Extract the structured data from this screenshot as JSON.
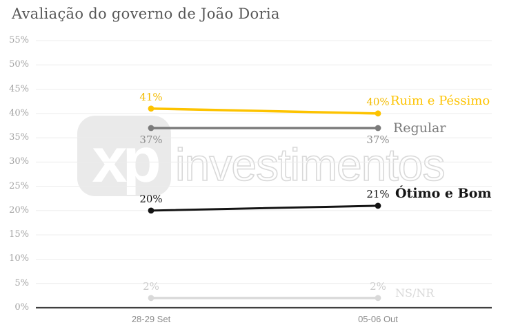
{
  "title": "Avaliação do governo de João Doria",
  "watermark": {
    "logo_text": "xp",
    "brand_text": "investimentos"
  },
  "colors": {
    "background": "#ffffff",
    "title_text": "#575757",
    "grid_line": "#ececec",
    "axis_line": "#3f3f3f",
    "y_tick_text": "#a4a4a4",
    "x_tick_text": "#8c8c8c",
    "watermark_block": "#eaeaea",
    "watermark_outline": "#d9d9d9"
  },
  "chart_data": {
    "type": "line",
    "title": "Avaliação do governo de João Doria",
    "categories": [
      "28-29 Set",
      "05-06 Out"
    ],
    "series": [
      {
        "name": "Ruim e Péssimo",
        "values": [
          41,
          40
        ],
        "point_labels": [
          "41%",
          "40%"
        ],
        "color": "#fdc300",
        "label_color": "#f3bb00",
        "name_font_size": 18,
        "name_bold": false
      },
      {
        "name": "Regular",
        "values": [
          37,
          37
        ],
        "point_labels": [
          "37%",
          "37%"
        ],
        "color": "#7b7b7b",
        "label_color": "#8f8f8f",
        "name_font_size": 19,
        "name_bold": false
      },
      {
        "name": "Ótimo e Bom",
        "values": [
          20,
          21
        ],
        "point_labels": [
          "20%",
          "21%"
        ],
        "color": "#141414",
        "label_color": "#141414",
        "name_font_size": 19,
        "name_bold": true
      },
      {
        "name": "NS/NR",
        "values": [
          2,
          2
        ],
        "point_labels": [
          "2%",
          "2%"
        ],
        "color": "#d9d9d9",
        "label_color": "#cccccc",
        "name_font_size": 16,
        "name_bold": false
      }
    ],
    "ylim": [
      0,
      55
    ],
    "ytick_step": 5,
    "yticks": [
      {
        "v": 55,
        "label": "55%"
      },
      {
        "v": 50,
        "label": "50%"
      },
      {
        "v": 45,
        "label": "45%"
      },
      {
        "v": 40,
        "label": "40%"
      },
      {
        "v": 35,
        "label": "35%"
      },
      {
        "v": 30,
        "label": "30%"
      },
      {
        "v": 25,
        "label": "25%"
      },
      {
        "v": 20,
        "label": "20%"
      },
      {
        "v": 15,
        "label": "15%"
      },
      {
        "v": 10,
        "label": "10%"
      },
      {
        "v": 5,
        "label": "5%"
      },
      {
        "v": 0,
        "label": "0%"
      }
    ],
    "grid": true,
    "legend_position": "right-of-last-point"
  }
}
